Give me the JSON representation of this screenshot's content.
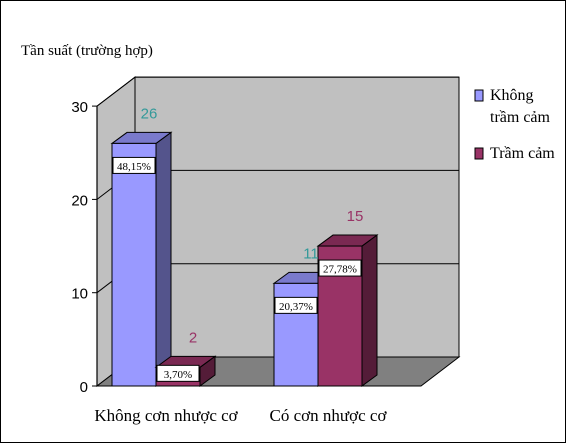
{
  "chart_data": {
    "type": "bar",
    "ylabel": "Tần suất (trường hợp)",
    "ylim": [
      0,
      30
    ],
    "yticks": [
      "0",
      "10",
      "20",
      "30"
    ],
    "categories": [
      "Không cơn nhược cơ",
      "Có cơn nhược cơ"
    ],
    "series": [
      {
        "name": "Không trầm cảm",
        "legend_lines": [
          "Không",
          "trầm cảm"
        ],
        "values": [
          26,
          11
        ],
        "value_labels": [
          "26",
          "11"
        ],
        "percent_labels": [
          "48,15%",
          "20,37%"
        ],
        "color": "#9999ff"
      },
      {
        "name": "Trầm cảm",
        "legend_lines": [
          "Trầm cảm"
        ],
        "values": [
          2,
          15
        ],
        "value_labels": [
          "2",
          "15"
        ],
        "percent_labels": [
          "3,70%",
          "27,78%"
        ],
        "color": "#993366"
      }
    ],
    "grid": true,
    "three_d": true,
    "legend_position": "right",
    "colors": {
      "wall": "#c0c0c0",
      "floor": "#808080",
      "value_label_series1": "#339999",
      "value_label_series2": "#993366"
    }
  }
}
